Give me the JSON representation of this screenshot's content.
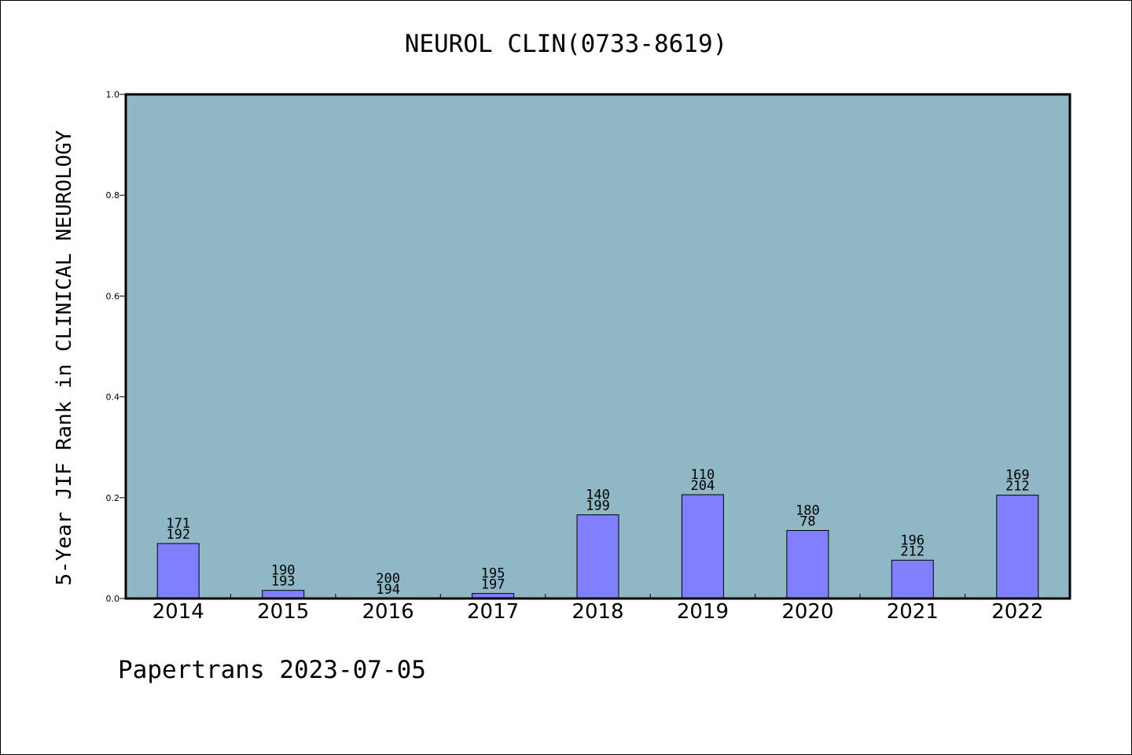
{
  "footer": {
    "source": "Papertrans",
    "date": "2023-07-05"
  },
  "chart_data": {
    "type": "bar",
    "title": "NEUROL CLIN(0733-8619)",
    "xlabel": "",
    "ylabel": "5-Year JIF Rank in CLINICAL NEUROLOGY",
    "ylim": [
      0,
      1.0
    ],
    "yticks": [
      "0.0",
      "0.2",
      "0.4",
      "0.6",
      "0.8",
      "1.0"
    ],
    "grid": false,
    "categories": [
      "2014",
      "2015",
      "2016",
      "2017",
      "2018",
      "2019",
      "2020",
      "2021",
      "2022"
    ],
    "values": [
      0.109,
      0.016,
      0.0,
      0.01,
      0.166,
      0.206,
      0.135,
      0.076,
      0.205
    ],
    "labels_top": [
      "171",
      "190",
      "200",
      "195",
      "140",
      "110",
      "180",
      "196",
      "169"
    ],
    "labels_bottom": [
      "192",
      "193",
      "194",
      "197",
      "199",
      "204",
      "78",
      "212",
      "212"
    ],
    "colors": {
      "plot_background": "#8fb7c5",
      "bar_fill": "#8080ff",
      "bar_stroke": "#000000"
    }
  }
}
